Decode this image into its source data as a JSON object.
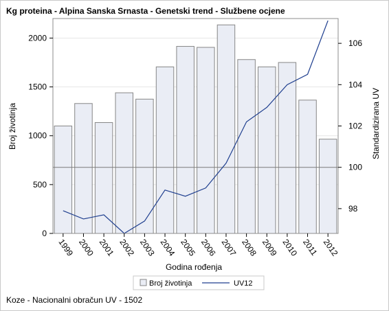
{
  "title": "Kg proteina - Alpina Sanska Srnasta - Genetski trend - Službene ocjene",
  "footnote": "Koze - Nacionalni obračun UV - 1502",
  "colors": {
    "bar_fill": "#eaedf5",
    "bar_stroke": "#868686",
    "line": "#1f3f8f",
    "reference": "#7a7a7a",
    "frame": "#c8c8c8"
  },
  "chart_data": {
    "type": "bar",
    "title": "Kg proteina - Alpina Sanska Srnasta - Genetski trend - Službene ocjene",
    "categories": [
      "1999",
      "2000",
      "2001",
      "2002",
      "2003",
      "2004",
      "2005",
      "2006",
      "2007",
      "2008",
      "2009",
      "2010",
      "2011",
      "2012"
    ],
    "xlabel": "Godina rođenja",
    "ylabel": "Broj životinja",
    "y2label": "Standardizirana UV",
    "ylim": [
      0,
      2200
    ],
    "y2lim": [
      96.8,
      107.2
    ],
    "yticks": [
      0,
      500,
      1000,
      1500,
      2000
    ],
    "y2ticks": [
      98,
      100,
      102,
      104,
      106
    ],
    "reference_line_y2": 100,
    "legend_position": "bottom",
    "series": [
      {
        "name": "Broj životinja",
        "type": "bar",
        "axis": "left",
        "values": [
          1100,
          1330,
          1135,
          1440,
          1375,
          1705,
          1915,
          1905,
          2135,
          1780,
          1705,
          1750,
          1365,
          965
        ]
      },
      {
        "name": "UV12",
        "type": "line",
        "axis": "right",
        "values": [
          97.9,
          97.5,
          97.7,
          96.8,
          97.4,
          98.9,
          98.6,
          99.0,
          100.2,
          102.2,
          102.9,
          104.0,
          104.5,
          107.1
        ]
      }
    ]
  }
}
